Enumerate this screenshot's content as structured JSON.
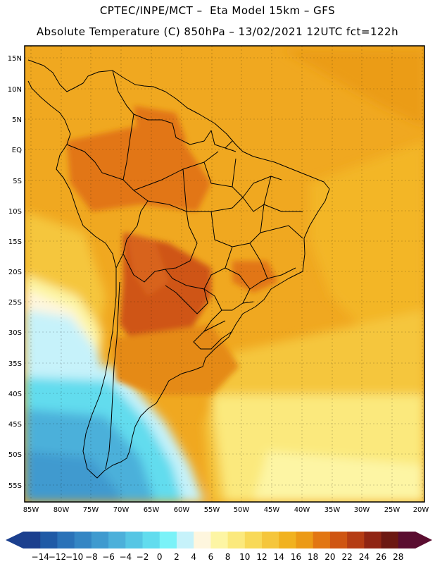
{
  "header": {
    "line1": "CPTEC/INPE/MCT –  Eta Model 15km – GFS",
    "line2": "Absolute Temperature (C) 850hPa – 13/02/2021 12UTC fct=122h"
  },
  "map": {
    "lon_range": [
      -86,
      -20
    ],
    "lat_range": [
      -59,
      17
    ],
    "lat_labels": [
      "15N",
      "10N",
      "5N",
      "EQ",
      "5S",
      "10S",
      "15S",
      "20S",
      "25S",
      "30S",
      "35S",
      "40S",
      "45S",
      "50S",
      "55S"
    ],
    "lon_labels": [
      "85W",
      "80W",
      "75W",
      "70W",
      "65W",
      "60W",
      "55W",
      "50W",
      "45W",
      "40W",
      "35W",
      "30W",
      "25W",
      "20W"
    ],
    "background_color": "#f0a820"
  },
  "colorbar": {
    "labels": [
      "-14",
      "-12",
      "-10",
      "-8",
      "-6",
      "-4",
      "-2",
      "0",
      "2",
      "4",
      "6",
      "8",
      "10",
      "12",
      "14",
      "16",
      "18",
      "20",
      "22",
      "24",
      "26",
      "28"
    ],
    "colors": [
      "#1b3f8e",
      "#1f5aa6",
      "#2a72b8",
      "#3486c4",
      "#3f9acf",
      "#4cb0da",
      "#56c6e4",
      "#62dcee",
      "#7af2f8",
      "#c6f2fa",
      "#fef6de",
      "#fdf5a4",
      "#fbe97d",
      "#f8d958",
      "#f5c63c",
      "#f1b21f",
      "#ec9a16",
      "#e27612",
      "#cf5512",
      "#b53c14",
      "#902514",
      "#6c1812",
      "#5a0d30"
    ]
  }
}
